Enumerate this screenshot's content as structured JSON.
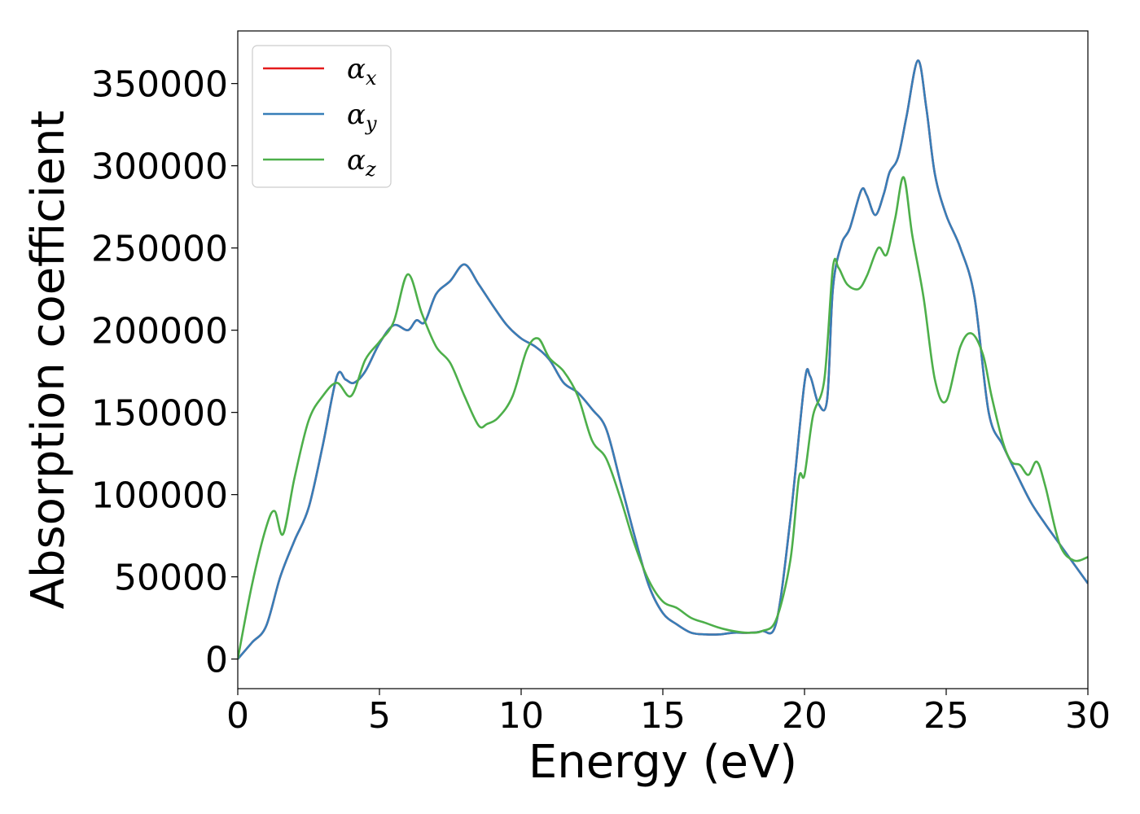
{
  "chart_data": {
    "type": "line",
    "xlabel": "Energy (eV)",
    "ylabel": "Absorption coefficient",
    "xlim": [
      0,
      30
    ],
    "ylim": [
      -18000,
      382000
    ],
    "xticks": [
      0,
      5,
      10,
      15,
      20,
      25,
      30
    ],
    "xtick_labels": [
      "0",
      "5",
      "10",
      "15",
      "20",
      "25",
      "30"
    ],
    "yticks": [
      0,
      50000,
      100000,
      150000,
      200000,
      250000,
      300000,
      350000
    ],
    "ytick_labels": [
      "0",
      "50000",
      "100000",
      "150000",
      "200000",
      "250000",
      "300000",
      "350000"
    ],
    "grid": false,
    "legend_position": "top-left",
    "series": [
      {
        "name": "α_x",
        "legend_base": "α",
        "legend_sub": "x",
        "color": "#e41a1c",
        "x": [
          0,
          0.5,
          1.0,
          1.5,
          2.0,
          2.5,
          3.0,
          3.5,
          3.8,
          4.1,
          4.5,
          5.0,
          5.5,
          6.0,
          6.3,
          6.6,
          7.0,
          7.5,
          8.0,
          8.5,
          9.0,
          9.5,
          10.0,
          10.5,
          11.0,
          11.5,
          12.0,
          12.5,
          13.0,
          13.5,
          14.0,
          14.5,
          15.0,
          15.5,
          16.0,
          16.5,
          17.0,
          17.5,
          18.0,
          18.5,
          19.0,
          19.5,
          20.0,
          20.2,
          20.5,
          20.8,
          21.0,
          21.3,
          21.6,
          22.0,
          22.2,
          22.5,
          22.8,
          23.0,
          23.3,
          23.6,
          24.0,
          24.3,
          24.6,
          25.0,
          25.5,
          26.0,
          26.5,
          27.0,
          27.5,
          28.0,
          28.5,
          29.0,
          29.5,
          30.0
        ],
        "y": [
          0,
          10000,
          20000,
          50000,
          72000,
          92000,
          130000,
          172000,
          170000,
          168000,
          175000,
          192000,
          203000,
          200000,
          206000,
          205000,
          222000,
          230000,
          240000,
          228000,
          215000,
          203000,
          195000,
          190000,
          182000,
          168000,
          162000,
          152000,
          140000,
          108000,
          75000,
          45000,
          28000,
          21000,
          16000,
          15000,
          15000,
          16000,
          16000,
          17000,
          22000,
          85000,
          168000,
          172000,
          155000,
          158000,
          225000,
          252000,
          262000,
          285000,
          282000,
          270000,
          283000,
          296000,
          305000,
          330000,
          364000,
          335000,
          295000,
          270000,
          250000,
          220000,
          150000,
          130000,
          112000,
          95000,
          82000,
          70000,
          58000,
          46000
        ]
      },
      {
        "name": "α_y",
        "legend_base": "α",
        "legend_sub": "y",
        "color": "#377eb8",
        "x": [
          0,
          0.5,
          1.0,
          1.5,
          2.0,
          2.5,
          3.0,
          3.5,
          3.8,
          4.1,
          4.5,
          5.0,
          5.5,
          6.0,
          6.3,
          6.6,
          7.0,
          7.5,
          8.0,
          8.5,
          9.0,
          9.5,
          10.0,
          10.5,
          11.0,
          11.5,
          12.0,
          12.5,
          13.0,
          13.5,
          14.0,
          14.5,
          15.0,
          15.5,
          16.0,
          16.5,
          17.0,
          17.5,
          18.0,
          18.5,
          19.0,
          19.5,
          20.0,
          20.2,
          20.5,
          20.8,
          21.0,
          21.3,
          21.6,
          22.0,
          22.2,
          22.5,
          22.8,
          23.0,
          23.3,
          23.6,
          24.0,
          24.3,
          24.6,
          25.0,
          25.5,
          26.0,
          26.5,
          27.0,
          27.5,
          28.0,
          28.5,
          29.0,
          29.5,
          30.0
        ],
        "y": [
          0,
          10000,
          20000,
          50000,
          72000,
          92000,
          130000,
          172000,
          170000,
          168000,
          175000,
          192000,
          203000,
          200000,
          206000,
          205000,
          222000,
          230000,
          240000,
          228000,
          215000,
          203000,
          195000,
          190000,
          182000,
          168000,
          162000,
          152000,
          140000,
          108000,
          75000,
          45000,
          28000,
          21000,
          16000,
          15000,
          15000,
          16000,
          16000,
          17000,
          22000,
          85000,
          168000,
          172000,
          155000,
          158000,
          225000,
          252000,
          262000,
          285000,
          282000,
          270000,
          283000,
          296000,
          305000,
          330000,
          364000,
          335000,
          295000,
          270000,
          250000,
          220000,
          150000,
          130000,
          112000,
          95000,
          82000,
          70000,
          58000,
          46000
        ]
      },
      {
        "name": "α_z",
        "legend_base": "α",
        "legend_sub": "z",
        "color": "#4daf4a",
        "x": [
          0,
          0.5,
          1.0,
          1.3,
          1.6,
          2.0,
          2.5,
          3.0,
          3.5,
          4.0,
          4.5,
          5.0,
          5.5,
          6.0,
          6.5,
          7.0,
          7.5,
          8.0,
          8.5,
          8.8,
          9.2,
          9.7,
          10.2,
          10.6,
          11.0,
          11.5,
          12.0,
          12.5,
          13.0,
          13.5,
          14.0,
          14.5,
          15.0,
          15.5,
          16.0,
          16.5,
          17.0,
          17.5,
          18.0,
          18.5,
          19.0,
          19.5,
          19.8,
          20.0,
          20.3,
          20.7,
          21.0,
          21.2,
          21.5,
          21.9,
          22.2,
          22.6,
          22.9,
          23.2,
          23.5,
          23.8,
          24.2,
          24.6,
          25.0,
          25.5,
          25.9,
          26.3,
          26.6,
          27.0,
          27.3,
          27.6,
          27.9,
          28.2,
          28.5,
          29.0,
          29.5,
          30.0
        ],
        "y": [
          0,
          45000,
          80000,
          90000,
          76000,
          110000,
          145000,
          160000,
          168000,
          160000,
          182000,
          193000,
          205000,
          234000,
          210000,
          190000,
          180000,
          160000,
          142000,
          143000,
          147000,
          160000,
          188000,
          195000,
          183000,
          175000,
          160000,
          133000,
          122000,
          98000,
          70000,
          48000,
          35000,
          31000,
          25000,
          22000,
          19000,
          17000,
          16000,
          17000,
          24000,
          60000,
          110000,
          112000,
          148000,
          170000,
          238000,
          238000,
          228000,
          225000,
          233000,
          250000,
          246000,
          268000,
          293000,
          258000,
          220000,
          170000,
          157000,
          190000,
          198000,
          185000,
          160000,
          132000,
          120000,
          118000,
          112000,
          120000,
          105000,
          70000,
          60000,
          62000
        ]
      }
    ]
  }
}
